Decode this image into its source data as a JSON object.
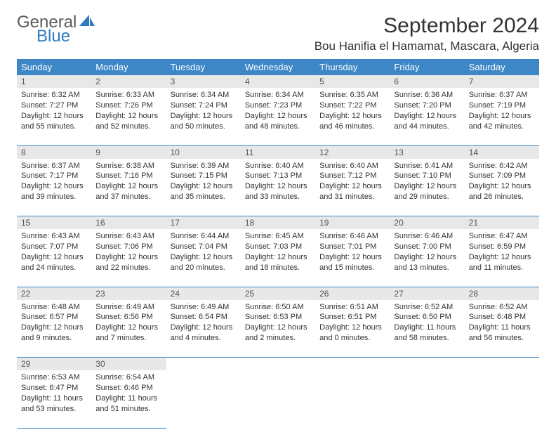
{
  "logo": {
    "text1": "General",
    "text2": "Blue"
  },
  "title": "September 2024",
  "location": "Bou Hanifia el Hamamat, Mascara, Algeria",
  "colors": {
    "header_bg": "#3d87c7",
    "header_text": "#ffffff",
    "daynum_bg": "#e8e8e8",
    "border": "#3d87c7",
    "logo_gray": "#5a5a5a",
    "logo_blue": "#2e7cc0"
  },
  "weekdays": [
    "Sunday",
    "Monday",
    "Tuesday",
    "Wednesday",
    "Thursday",
    "Friday",
    "Saturday"
  ],
  "weeks": [
    [
      {
        "n": "1",
        "sr": "Sunrise: 6:32 AM",
        "ss": "Sunset: 7:27 PM",
        "dl": "Daylight: 12 hours and 55 minutes."
      },
      {
        "n": "2",
        "sr": "Sunrise: 6:33 AM",
        "ss": "Sunset: 7:26 PM",
        "dl": "Daylight: 12 hours and 52 minutes."
      },
      {
        "n": "3",
        "sr": "Sunrise: 6:34 AM",
        "ss": "Sunset: 7:24 PM",
        "dl": "Daylight: 12 hours and 50 minutes."
      },
      {
        "n": "4",
        "sr": "Sunrise: 6:34 AM",
        "ss": "Sunset: 7:23 PM",
        "dl": "Daylight: 12 hours and 48 minutes."
      },
      {
        "n": "5",
        "sr": "Sunrise: 6:35 AM",
        "ss": "Sunset: 7:22 PM",
        "dl": "Daylight: 12 hours and 46 minutes."
      },
      {
        "n": "6",
        "sr": "Sunrise: 6:36 AM",
        "ss": "Sunset: 7:20 PM",
        "dl": "Daylight: 12 hours and 44 minutes."
      },
      {
        "n": "7",
        "sr": "Sunrise: 6:37 AM",
        "ss": "Sunset: 7:19 PM",
        "dl": "Daylight: 12 hours and 42 minutes."
      }
    ],
    [
      {
        "n": "8",
        "sr": "Sunrise: 6:37 AM",
        "ss": "Sunset: 7:17 PM",
        "dl": "Daylight: 12 hours and 39 minutes."
      },
      {
        "n": "9",
        "sr": "Sunrise: 6:38 AM",
        "ss": "Sunset: 7:16 PM",
        "dl": "Daylight: 12 hours and 37 minutes."
      },
      {
        "n": "10",
        "sr": "Sunrise: 6:39 AM",
        "ss": "Sunset: 7:15 PM",
        "dl": "Daylight: 12 hours and 35 minutes."
      },
      {
        "n": "11",
        "sr": "Sunrise: 6:40 AM",
        "ss": "Sunset: 7:13 PM",
        "dl": "Daylight: 12 hours and 33 minutes."
      },
      {
        "n": "12",
        "sr": "Sunrise: 6:40 AM",
        "ss": "Sunset: 7:12 PM",
        "dl": "Daylight: 12 hours and 31 minutes."
      },
      {
        "n": "13",
        "sr": "Sunrise: 6:41 AM",
        "ss": "Sunset: 7:10 PM",
        "dl": "Daylight: 12 hours and 29 minutes."
      },
      {
        "n": "14",
        "sr": "Sunrise: 6:42 AM",
        "ss": "Sunset: 7:09 PM",
        "dl": "Daylight: 12 hours and 26 minutes."
      }
    ],
    [
      {
        "n": "15",
        "sr": "Sunrise: 6:43 AM",
        "ss": "Sunset: 7:07 PM",
        "dl": "Daylight: 12 hours and 24 minutes."
      },
      {
        "n": "16",
        "sr": "Sunrise: 6:43 AM",
        "ss": "Sunset: 7:06 PM",
        "dl": "Daylight: 12 hours and 22 minutes."
      },
      {
        "n": "17",
        "sr": "Sunrise: 6:44 AM",
        "ss": "Sunset: 7:04 PM",
        "dl": "Daylight: 12 hours and 20 minutes."
      },
      {
        "n": "18",
        "sr": "Sunrise: 6:45 AM",
        "ss": "Sunset: 7:03 PM",
        "dl": "Daylight: 12 hours and 18 minutes."
      },
      {
        "n": "19",
        "sr": "Sunrise: 6:46 AM",
        "ss": "Sunset: 7:01 PM",
        "dl": "Daylight: 12 hours and 15 minutes."
      },
      {
        "n": "20",
        "sr": "Sunrise: 6:46 AM",
        "ss": "Sunset: 7:00 PM",
        "dl": "Daylight: 12 hours and 13 minutes."
      },
      {
        "n": "21",
        "sr": "Sunrise: 6:47 AM",
        "ss": "Sunset: 6:59 PM",
        "dl": "Daylight: 12 hours and 11 minutes."
      }
    ],
    [
      {
        "n": "22",
        "sr": "Sunrise: 6:48 AM",
        "ss": "Sunset: 6:57 PM",
        "dl": "Daylight: 12 hours and 9 minutes."
      },
      {
        "n": "23",
        "sr": "Sunrise: 6:49 AM",
        "ss": "Sunset: 6:56 PM",
        "dl": "Daylight: 12 hours and 7 minutes."
      },
      {
        "n": "24",
        "sr": "Sunrise: 6:49 AM",
        "ss": "Sunset: 6:54 PM",
        "dl": "Daylight: 12 hours and 4 minutes."
      },
      {
        "n": "25",
        "sr": "Sunrise: 6:50 AM",
        "ss": "Sunset: 6:53 PM",
        "dl": "Daylight: 12 hours and 2 minutes."
      },
      {
        "n": "26",
        "sr": "Sunrise: 6:51 AM",
        "ss": "Sunset: 6:51 PM",
        "dl": "Daylight: 12 hours and 0 minutes."
      },
      {
        "n": "27",
        "sr": "Sunrise: 6:52 AM",
        "ss": "Sunset: 6:50 PM",
        "dl": "Daylight: 11 hours and 58 minutes."
      },
      {
        "n": "28",
        "sr": "Sunrise: 6:52 AM",
        "ss": "Sunset: 6:48 PM",
        "dl": "Daylight: 11 hours and 56 minutes."
      }
    ],
    [
      {
        "n": "29",
        "sr": "Sunrise: 6:53 AM",
        "ss": "Sunset: 6:47 PM",
        "dl": "Daylight: 11 hours and 53 minutes."
      },
      {
        "n": "30",
        "sr": "Sunrise: 6:54 AM",
        "ss": "Sunset: 6:46 PM",
        "dl": "Daylight: 11 hours and 51 minutes."
      },
      null,
      null,
      null,
      null,
      null
    ]
  ]
}
